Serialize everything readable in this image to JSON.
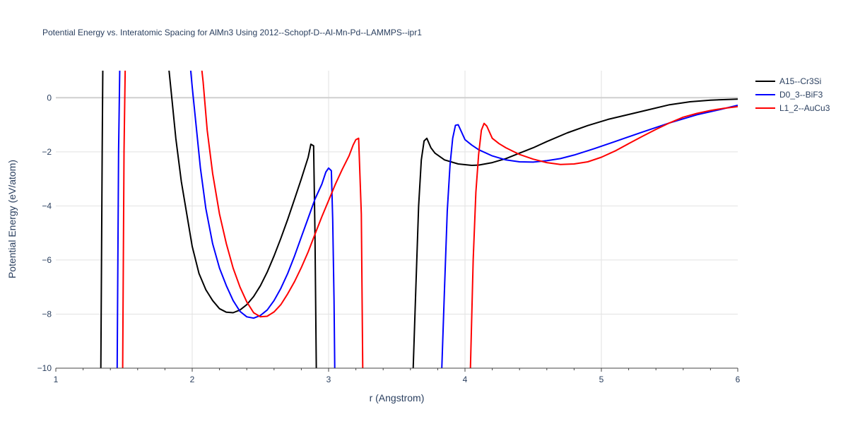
{
  "chart_data": {
    "type": "line",
    "title": "Potential Energy vs. Interatomic Spacing for AlMn3 Using 2012--Schopf-D--Al-Mn-Pd--LAMMPS--ipr1",
    "xlabel": "r (Angstrom)",
    "ylabel": "Potential Energy (eV/atom)",
    "xlim": [
      1,
      6
    ],
    "ylim": [
      -10,
      1
    ],
    "x_ticks": [
      1,
      2,
      3,
      4,
      5,
      6
    ],
    "x_tick_labels": [
      "1",
      "2",
      "3",
      "4",
      "5",
      "6"
    ],
    "y_ticks": [
      -10,
      -8,
      -6,
      -4,
      -2,
      0
    ],
    "y_tick_labels": [
      "−10",
      "−8",
      "−6",
      "−4",
      "−2",
      "0"
    ],
    "grid": true,
    "legend_position": "top-right",
    "series": [
      {
        "name": "A15--Cr3Si",
        "color": "#000000",
        "segments": [
          [
            [
              1.32,
              -10.5
            ],
            [
              1.33,
              -10
            ],
            [
              1.34,
              -2
            ],
            [
              1.345,
              1.5
            ]
          ],
          [
            [
              1.82,
              1.5
            ],
            [
              1.85,
              0
            ],
            [
              1.88,
              -1.5
            ],
            [
              1.92,
              -3.1
            ],
            [
              1.96,
              -4.3
            ],
            [
              2.0,
              -5.5
            ],
            [
              2.05,
              -6.5
            ],
            [
              2.1,
              -7.1
            ],
            [
              2.15,
              -7.5
            ],
            [
              2.2,
              -7.8
            ],
            [
              2.25,
              -7.93
            ],
            [
              2.3,
              -7.95
            ],
            [
              2.35,
              -7.85
            ],
            [
              2.4,
              -7.65
            ],
            [
              2.45,
              -7.35
            ],
            [
              2.5,
              -6.95
            ],
            [
              2.55,
              -6.45
            ],
            [
              2.6,
              -5.85
            ],
            [
              2.65,
              -5.2
            ],
            [
              2.7,
              -4.5
            ],
            [
              2.75,
              -3.75
            ],
            [
              2.8,
              -3.0
            ],
            [
              2.85,
              -2.2
            ],
            [
              2.87,
              -1.72
            ],
            [
              2.89,
              -1.78
            ],
            [
              2.9,
              -5.0
            ],
            [
              2.91,
              -10
            ],
            [
              2.915,
              -10.5
            ]
          ],
          [
            [
              3.61,
              -10.5
            ],
            [
              3.62,
              -10
            ],
            [
              3.64,
              -7
            ],
            [
              3.66,
              -4
            ],
            [
              3.68,
              -2.3
            ],
            [
              3.7,
              -1.6
            ],
            [
              3.72,
              -1.5
            ],
            [
              3.75,
              -1.85
            ],
            [
              3.78,
              -2.05
            ],
            [
              3.85,
              -2.3
            ],
            [
              3.95,
              -2.45
            ],
            [
              4.05,
              -2.5
            ],
            [
              4.1,
              -2.49
            ],
            [
              4.2,
              -2.4
            ],
            [
              4.3,
              -2.25
            ],
            [
              4.4,
              -2.05
            ],
            [
              4.5,
              -1.85
            ],
            [
              4.6,
              -1.62
            ],
            [
              4.75,
              -1.3
            ],
            [
              4.9,
              -1.03
            ],
            [
              5.05,
              -0.8
            ],
            [
              5.2,
              -0.62
            ],
            [
              5.35,
              -0.44
            ],
            [
              5.5,
              -0.26
            ],
            [
              5.65,
              -0.15
            ],
            [
              5.8,
              -0.09
            ],
            [
              5.95,
              -0.06
            ],
            [
              6.0,
              -0.05
            ]
          ]
        ]
      },
      {
        "name": "D0_3--BiF3",
        "color": "#0000ff",
        "segments": [
          [
            [
              1.44,
              -10.5
            ],
            [
              1.45,
              -10
            ],
            [
              1.46,
              -2
            ],
            [
              1.47,
              1.5
            ]
          ],
          [
            [
              1.98,
              1.5
            ],
            [
              2.0,
              0.4
            ],
            [
              2.03,
              -1.1
            ],
            [
              2.06,
              -2.6
            ],
            [
              2.1,
              -4.1
            ],
            [
              2.15,
              -5.4
            ],
            [
              2.2,
              -6.3
            ],
            [
              2.25,
              -6.95
            ],
            [
              2.3,
              -7.5
            ],
            [
              2.35,
              -7.9
            ],
            [
              2.4,
              -8.1
            ],
            [
              2.45,
              -8.15
            ],
            [
              2.5,
              -8.05
            ],
            [
              2.55,
              -7.85
            ],
            [
              2.6,
              -7.5
            ],
            [
              2.65,
              -7.05
            ],
            [
              2.7,
              -6.5
            ],
            [
              2.75,
              -5.85
            ],
            [
              2.8,
              -5.15
            ],
            [
              2.85,
              -4.45
            ],
            [
              2.9,
              -3.75
            ],
            [
              2.95,
              -3.2
            ],
            [
              2.98,
              -2.75
            ],
            [
              3.0,
              -2.6
            ],
            [
              3.02,
              -2.7
            ],
            [
              3.03,
              -4.5
            ],
            [
              3.04,
              -7.5
            ],
            [
              3.045,
              -10
            ],
            [
              3.05,
              -10.5
            ]
          ],
          [
            [
              3.82,
              -10.5
            ],
            [
              3.83,
              -10
            ],
            [
              3.85,
              -7
            ],
            [
              3.87,
              -4.2
            ],
            [
              3.89,
              -2.5
            ],
            [
              3.91,
              -1.5
            ],
            [
              3.93,
              -1.02
            ],
            [
              3.95,
              -1.0
            ],
            [
              4.0,
              -1.55
            ],
            [
              4.05,
              -1.75
            ],
            [
              4.1,
              -1.92
            ],
            [
              4.2,
              -2.15
            ],
            [
              4.3,
              -2.3
            ],
            [
              4.4,
              -2.37
            ],
            [
              4.5,
              -2.38
            ],
            [
              4.6,
              -2.33
            ],
            [
              4.7,
              -2.25
            ],
            [
              4.8,
              -2.12
            ],
            [
              4.95,
              -1.88
            ],
            [
              5.1,
              -1.62
            ],
            [
              5.3,
              -1.27
            ],
            [
              5.5,
              -0.93
            ],
            [
              5.7,
              -0.63
            ],
            [
              5.85,
              -0.46
            ],
            [
              6.0,
              -0.28
            ]
          ]
        ]
      },
      {
        "name": "L1_2--AuCu3",
        "color": "#ff0000",
        "segments": [
          [
            [
              1.48,
              -10.5
            ],
            [
              1.49,
              -10
            ],
            [
              1.5,
              -2
            ],
            [
              1.51,
              1.5
            ]
          ],
          [
            [
              2.06,
              1.5
            ],
            [
              2.08,
              0.6
            ],
            [
              2.11,
              -1.2
            ],
            [
              2.15,
              -2.8
            ],
            [
              2.2,
              -4.3
            ],
            [
              2.25,
              -5.4
            ],
            [
              2.3,
              -6.3
            ],
            [
              2.35,
              -7.0
            ],
            [
              2.4,
              -7.55
            ],
            [
              2.45,
              -7.95
            ],
            [
              2.5,
              -8.1
            ],
            [
              2.55,
              -8.08
            ],
            [
              2.6,
              -7.92
            ],
            [
              2.65,
              -7.65
            ],
            [
              2.7,
              -7.25
            ],
            [
              2.75,
              -6.8
            ],
            [
              2.8,
              -6.28
            ],
            [
              2.85,
              -5.7
            ],
            [
              2.9,
              -5.05
            ],
            [
              2.95,
              -4.4
            ],
            [
              3.0,
              -3.8
            ],
            [
              3.05,
              -3.2
            ],
            [
              3.1,
              -2.65
            ],
            [
              3.15,
              -2.15
            ],
            [
              3.18,
              -1.75
            ],
            [
              3.2,
              -1.55
            ],
            [
              3.22,
              -1.5
            ],
            [
              3.24,
              -4.3
            ],
            [
              3.25,
              -10
            ],
            [
              3.255,
              -10.5
            ]
          ],
          [
            [
              4.03,
              -10.5
            ],
            [
              4.04,
              -10
            ],
            [
              4.06,
              -6
            ],
            [
              4.08,
              -3.5
            ],
            [
              4.1,
              -2.1
            ],
            [
              4.12,
              -1.2
            ],
            [
              4.14,
              -0.95
            ],
            [
              4.16,
              -1.05
            ],
            [
              4.2,
              -1.5
            ],
            [
              4.25,
              -1.7
            ],
            [
              4.3,
              -1.85
            ],
            [
              4.4,
              -2.1
            ],
            [
              4.5,
              -2.27
            ],
            [
              4.6,
              -2.4
            ],
            [
              4.7,
              -2.47
            ],
            [
              4.8,
              -2.45
            ],
            [
              4.9,
              -2.37
            ],
            [
              5.0,
              -2.2
            ],
            [
              5.1,
              -1.97
            ],
            [
              5.2,
              -1.7
            ],
            [
              5.3,
              -1.43
            ],
            [
              5.4,
              -1.17
            ],
            [
              5.5,
              -0.93
            ],
            [
              5.6,
              -0.72
            ],
            [
              5.7,
              -0.58
            ],
            [
              5.8,
              -0.47
            ],
            [
              5.9,
              -0.39
            ],
            [
              6.0,
              -0.33
            ]
          ]
        ]
      }
    ]
  }
}
